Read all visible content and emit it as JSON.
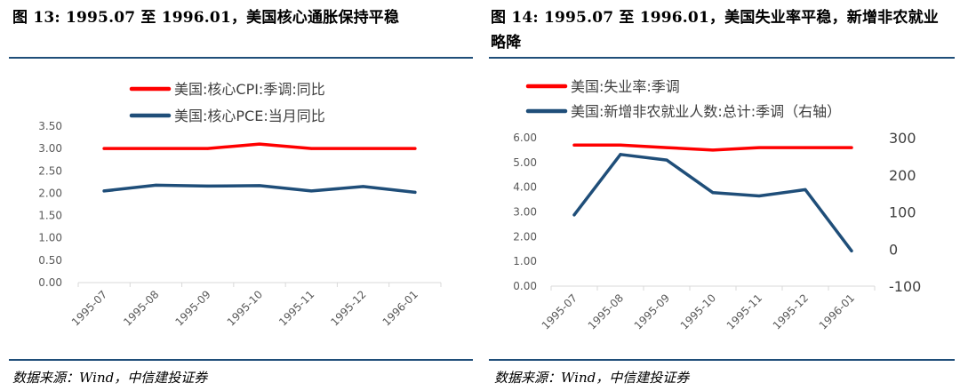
{
  "left": {
    "title": "图 13: 1995.07 至 1996.01，美国核心通胀保持平稳",
    "source": "数据来源：Wind，中信建投证券"
  },
  "right": {
    "title": "图 14: 1995.07 至 1996.01，美国失业率平稳，新增非农就业略降",
    "source": "数据来源：Wind，中信建投证券"
  },
  "colors": {
    "red": "#ff0000",
    "navy": "#1f4e79",
    "rule": "#1f4e79"
  },
  "chart_data": [
    {
      "type": "line",
      "categories": [
        "1995-07",
        "1995-08",
        "1995-09",
        "1995-10",
        "1995-11",
        "1995-12",
        "1996-01"
      ],
      "series": [
        {
          "name": "美国:核心CPI:季调:同比",
          "color": "#ff0000",
          "values": [
            3.0,
            3.0,
            3.0,
            3.1,
            3.0,
            3.0,
            3.0
          ]
        },
        {
          "name": "美国:核心PCE:当月同比",
          "color": "#1f4e79",
          "values": [
            2.05,
            2.18,
            2.16,
            2.17,
            2.05,
            2.15,
            2.02
          ]
        }
      ],
      "ylim": [
        0,
        3.5
      ],
      "yticks": [
        "0.00",
        "0.50",
        "1.00",
        "1.50",
        "2.00",
        "2.50",
        "3.00",
        "3.50"
      ],
      "legend": "top",
      "grid": false
    },
    {
      "type": "line",
      "categories": [
        "1995-07",
        "1995-08",
        "1995-09",
        "1995-10",
        "1995-11",
        "1995-12",
        "1996-01"
      ],
      "series": [
        {
          "name": "美国:失业率:季调",
          "color": "#ff0000",
          "axis": "left",
          "values": [
            5.7,
            5.7,
            5.6,
            5.5,
            5.6,
            5.6,
            5.6
          ]
        },
        {
          "name": "美国:新增非农就业人数:总计:季调（右轴）",
          "color": "#1f4e79",
          "axis": "right",
          "values": [
            92,
            255,
            240,
            152,
            143,
            160,
            -5
          ]
        }
      ],
      "ylim": [
        0,
        6
      ],
      "yticks": [
        "0.00",
        "1.00",
        "2.00",
        "3.00",
        "4.00",
        "5.00",
        "6.00"
      ],
      "y2lim": [
        -100,
        300
      ],
      "y2ticks": [
        "-100",
        "0",
        "100",
        "200",
        "300"
      ],
      "legend": "top",
      "grid": false
    }
  ]
}
